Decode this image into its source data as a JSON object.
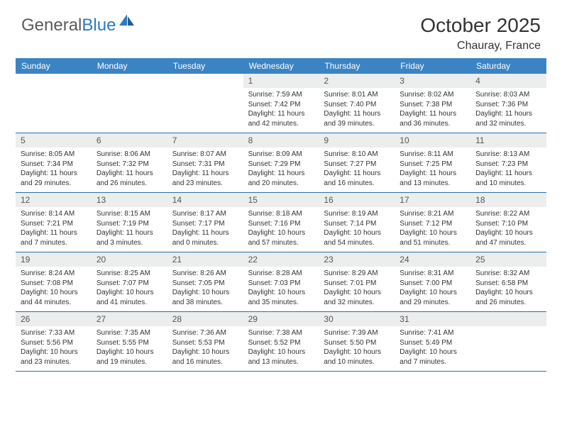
{
  "brand": {
    "part1": "General",
    "part2": "Blue"
  },
  "title": "October 2025",
  "location": "Chauray, France",
  "colors": {
    "header_bg": "#3b84c4",
    "daynum_bg": "#eceded",
    "rule": "#2b6faa",
    "logo_gray": "#5a5a5a",
    "logo_blue": "#2b7bbf"
  },
  "dayNames": [
    "Sunday",
    "Monday",
    "Tuesday",
    "Wednesday",
    "Thursday",
    "Friday",
    "Saturday"
  ],
  "weeks": [
    [
      null,
      null,
      null,
      {
        "n": "1",
        "sr": "7:59 AM",
        "ss": "7:42 PM",
        "dl": "11 hours and 42 minutes."
      },
      {
        "n": "2",
        "sr": "8:01 AM",
        "ss": "7:40 PM",
        "dl": "11 hours and 39 minutes."
      },
      {
        "n": "3",
        "sr": "8:02 AM",
        "ss": "7:38 PM",
        "dl": "11 hours and 36 minutes."
      },
      {
        "n": "4",
        "sr": "8:03 AM",
        "ss": "7:36 PM",
        "dl": "11 hours and 32 minutes."
      }
    ],
    [
      {
        "n": "5",
        "sr": "8:05 AM",
        "ss": "7:34 PM",
        "dl": "11 hours and 29 minutes."
      },
      {
        "n": "6",
        "sr": "8:06 AM",
        "ss": "7:32 PM",
        "dl": "11 hours and 26 minutes."
      },
      {
        "n": "7",
        "sr": "8:07 AM",
        "ss": "7:31 PM",
        "dl": "11 hours and 23 minutes."
      },
      {
        "n": "8",
        "sr": "8:09 AM",
        "ss": "7:29 PM",
        "dl": "11 hours and 20 minutes."
      },
      {
        "n": "9",
        "sr": "8:10 AM",
        "ss": "7:27 PM",
        "dl": "11 hours and 16 minutes."
      },
      {
        "n": "10",
        "sr": "8:11 AM",
        "ss": "7:25 PM",
        "dl": "11 hours and 13 minutes."
      },
      {
        "n": "11",
        "sr": "8:13 AM",
        "ss": "7:23 PM",
        "dl": "11 hours and 10 minutes."
      }
    ],
    [
      {
        "n": "12",
        "sr": "8:14 AM",
        "ss": "7:21 PM",
        "dl": "11 hours and 7 minutes."
      },
      {
        "n": "13",
        "sr": "8:15 AM",
        "ss": "7:19 PM",
        "dl": "11 hours and 3 minutes."
      },
      {
        "n": "14",
        "sr": "8:17 AM",
        "ss": "7:17 PM",
        "dl": "11 hours and 0 minutes."
      },
      {
        "n": "15",
        "sr": "8:18 AM",
        "ss": "7:16 PM",
        "dl": "10 hours and 57 minutes."
      },
      {
        "n": "16",
        "sr": "8:19 AM",
        "ss": "7:14 PM",
        "dl": "10 hours and 54 minutes."
      },
      {
        "n": "17",
        "sr": "8:21 AM",
        "ss": "7:12 PM",
        "dl": "10 hours and 51 minutes."
      },
      {
        "n": "18",
        "sr": "8:22 AM",
        "ss": "7:10 PM",
        "dl": "10 hours and 47 minutes."
      }
    ],
    [
      {
        "n": "19",
        "sr": "8:24 AM",
        "ss": "7:08 PM",
        "dl": "10 hours and 44 minutes."
      },
      {
        "n": "20",
        "sr": "8:25 AM",
        "ss": "7:07 PM",
        "dl": "10 hours and 41 minutes."
      },
      {
        "n": "21",
        "sr": "8:26 AM",
        "ss": "7:05 PM",
        "dl": "10 hours and 38 minutes."
      },
      {
        "n": "22",
        "sr": "8:28 AM",
        "ss": "7:03 PM",
        "dl": "10 hours and 35 minutes."
      },
      {
        "n": "23",
        "sr": "8:29 AM",
        "ss": "7:01 PM",
        "dl": "10 hours and 32 minutes."
      },
      {
        "n": "24",
        "sr": "8:31 AM",
        "ss": "7:00 PM",
        "dl": "10 hours and 29 minutes."
      },
      {
        "n": "25",
        "sr": "8:32 AM",
        "ss": "6:58 PM",
        "dl": "10 hours and 26 minutes."
      }
    ],
    [
      {
        "n": "26",
        "sr": "7:33 AM",
        "ss": "5:56 PM",
        "dl": "10 hours and 23 minutes."
      },
      {
        "n": "27",
        "sr": "7:35 AM",
        "ss": "5:55 PM",
        "dl": "10 hours and 19 minutes."
      },
      {
        "n": "28",
        "sr": "7:36 AM",
        "ss": "5:53 PM",
        "dl": "10 hours and 16 minutes."
      },
      {
        "n": "29",
        "sr": "7:38 AM",
        "ss": "5:52 PM",
        "dl": "10 hours and 13 minutes."
      },
      {
        "n": "30",
        "sr": "7:39 AM",
        "ss": "5:50 PM",
        "dl": "10 hours and 10 minutes."
      },
      {
        "n": "31",
        "sr": "7:41 AM",
        "ss": "5:49 PM",
        "dl": "10 hours and 7 minutes."
      },
      null
    ]
  ],
  "labels": {
    "sunrise": "Sunrise: ",
    "sunset": "Sunset: ",
    "daylight": "Daylight: "
  }
}
